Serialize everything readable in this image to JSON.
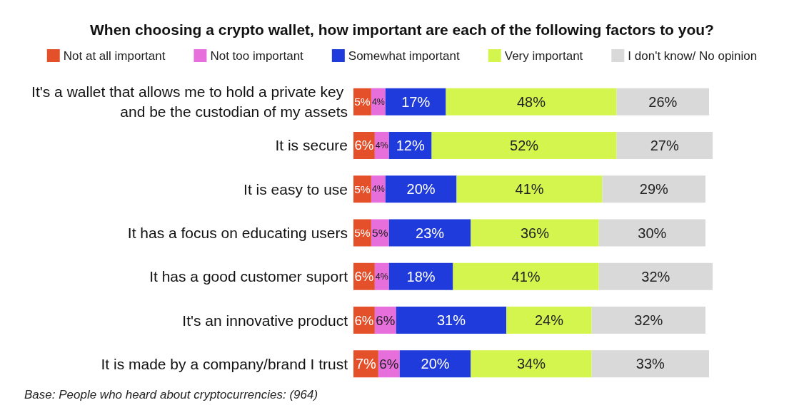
{
  "chart_data": {
    "type": "bar",
    "orientation": "horizontal",
    "stacked": true,
    "title": "When choosing a crypto wallet, how important are each of the following factors to you?",
    "categories": [
      "It's a wallet that allows me to hold a private key and be the custodian of my assets",
      "It is secure",
      "It is easy to use",
      "It has a focus on educating users",
      "It has a good customer suport",
      "It's an innovative product",
      "It is made by a company/brand I trust"
    ],
    "series": [
      {
        "name": "Not at all important",
        "color": "#e4502a",
        "values": [
          5,
          6,
          5,
          5,
          6,
          6,
          7
        ],
        "value_labels": [
          "5%",
          "6%",
          "5%",
          "5%",
          "6%",
          "6%",
          "7%"
        ]
      },
      {
        "name": "Not too important",
        "color": "#e66fdc",
        "values": [
          4,
          4,
          4,
          5,
          4,
          6,
          6
        ],
        "value_labels": [
          "4%",
          "4%",
          "4%",
          "5%",
          "4%",
          "6%",
          "6%"
        ]
      },
      {
        "name": "Somewhat important",
        "color": "#1f3bdb",
        "values": [
          17,
          12,
          20,
          23,
          18,
          31,
          20
        ],
        "value_labels": [
          "17%",
          "12%",
          "20%",
          "23%",
          "18%",
          "31%",
          "20%"
        ]
      },
      {
        "name": "Very important",
        "color": "#d4f54e",
        "values": [
          48,
          52,
          41,
          36,
          41,
          24,
          34
        ],
        "value_labels": [
          "48%",
          "52%",
          "41%",
          "36%",
          "41%",
          "24%",
          "34%"
        ]
      },
      {
        "name": "I don't know/ No opinion",
        "color": "#d9d9d9",
        "values": [
          26,
          27,
          29,
          30,
          32,
          32,
          33
        ],
        "value_labels": [
          "26%",
          "27%",
          "29%",
          "30%",
          "32%",
          "32%",
          "33%"
        ]
      }
    ],
    "legend": "top",
    "tick_labels": "y",
    "annotations": [
      "Base: People who heard about cryptocurrencies: (964)"
    ]
  }
}
